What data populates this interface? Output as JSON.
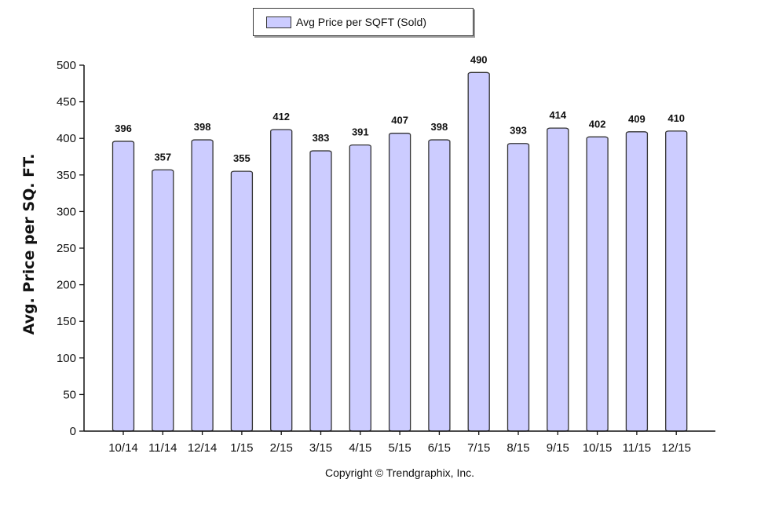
{
  "chart_data": {
    "type": "bar",
    "categories": [
      "10/14",
      "11/14",
      "12/14",
      "1/15",
      "2/15",
      "3/15",
      "4/15",
      "5/15",
      "6/15",
      "7/15",
      "8/15",
      "9/15",
      "10/15",
      "11/15",
      "12/15"
    ],
    "series": [
      {
        "name": "Avg Price per SQFT (Sold)",
        "values": [
          396,
          357,
          398,
          355,
          412,
          383,
          391,
          407,
          398,
          490,
          393,
          414,
          402,
          409,
          410
        ]
      }
    ],
    "data_labels": [
      "396",
      "357",
      "398",
      "355",
      "412",
      "383",
      "391",
      "407",
      "398",
      "490",
      "393",
      "414",
      "402",
      "409",
      "410"
    ],
    "ylabel": "Avg. Price per SQ. FT.",
    "xlabel": "",
    "ylim": [
      0,
      500
    ],
    "yticks": [
      "0",
      "50",
      "100",
      "150",
      "200",
      "250",
      "300",
      "350",
      "400",
      "450",
      "500"
    ],
    "legend": {
      "position": "top-center"
    },
    "grid": false,
    "bar_color": "#ccccff",
    "bar_border_color": "#333333"
  },
  "footer": {
    "copyright": "Copyright © Trendgraphix, Inc."
  }
}
